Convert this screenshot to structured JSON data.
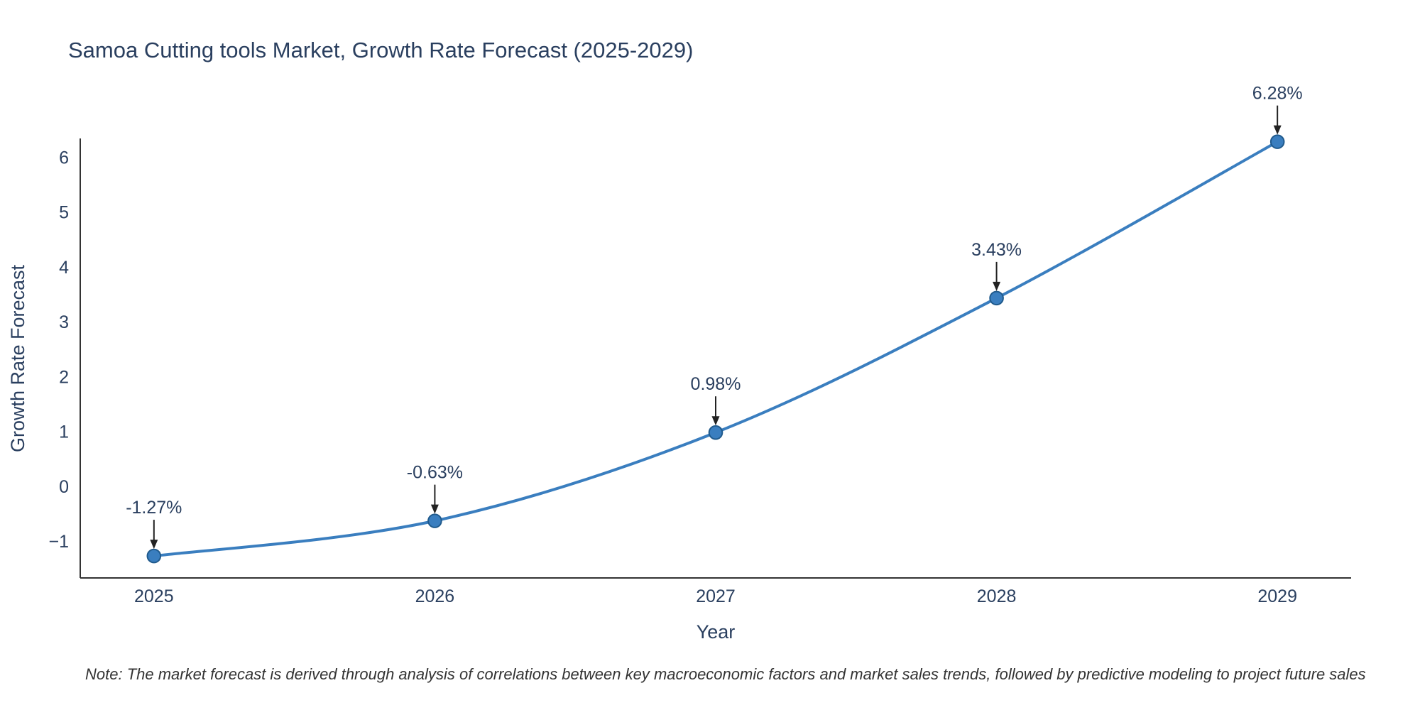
{
  "title": "Samoa Cutting tools Market, Growth Rate Forecast (2025-2029)",
  "note": "Note: The market forecast is derived through analysis of correlations between key macroeconomic factors and market sales trends, followed by predictive modeling to project future sales",
  "chart_data": {
    "type": "line",
    "title": "Samoa Cutting tools Market, Growth Rate Forecast (2025-2029)",
    "xlabel": "Year",
    "ylabel": "Growth Rate Forecast",
    "x": [
      2025,
      2026,
      2027,
      2028,
      2029
    ],
    "y": [
      -1.27,
      -0.63,
      0.98,
      3.43,
      6.28
    ],
    "point_labels": [
      "-1.27%",
      "-0.63%",
      "0.98%",
      "3.43%",
      "6.28%"
    ],
    "yticks": [
      -1,
      0,
      1,
      2,
      3,
      4,
      5,
      6
    ],
    "ylim": [
      -1.67,
      6.34
    ],
    "grid": false,
    "legend": "none",
    "line_shape": "spline",
    "line_color": "#3a7ebf",
    "marker_color": "#3a7ebf",
    "marker_edge_color": "#205a8c",
    "arrow_color": "#222222",
    "axis_line_color": "#333333",
    "text_color": "#2a3f5f"
  }
}
